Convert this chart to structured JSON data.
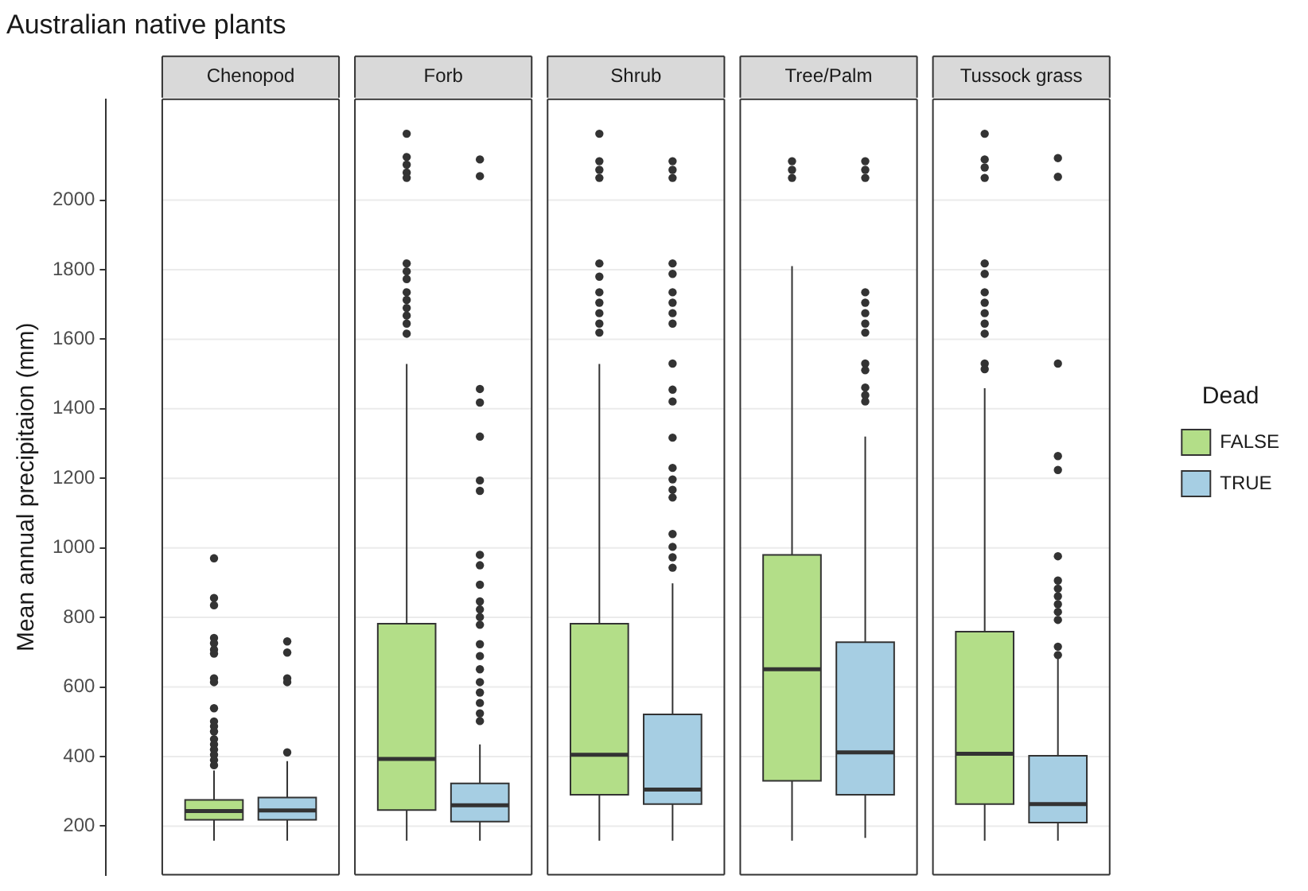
{
  "chart_data": {
    "type": "box",
    "title": "Australian native plants",
    "ylabel": "Mean annual precipitaion (mm)",
    "legend_title": "Dead",
    "legend": "right",
    "grid": true,
    "categories": [
      "Chenopod",
      "Forb",
      "Shrub",
      "Tree/Palm",
      "Tussock grass"
    ],
    "ylim": [
      60,
      2290
    ],
    "yticks": [
      200,
      400,
      600,
      800,
      1000,
      1200,
      1400,
      1600,
      1800,
      2000
    ],
    "series": [
      {
        "name": "FALSE",
        "color": "#b3de88",
        "boxes": [
          {
            "low": 158,
            "q1": 218,
            "median": 243,
            "q3": 275,
            "high": 360,
            "outliers": [
              970,
              856,
              835,
              741,
              726,
              707,
              696,
              625,
              614,
              539,
              501,
              487,
              472,
              450,
              435,
              420,
              405,
              390,
              375
            ]
          },
          {
            "low": 158,
            "q1": 246,
            "median": 393,
            "q3": 782,
            "high": 1529,
            "outliers": [
              2191,
              2124,
              2102,
              2079,
              2064,
              1818,
              1795,
              1773,
              1735,
              1713,
              1690,
              1668,
              1645,
              1616
            ]
          },
          {
            "low": 158,
            "q1": 290,
            "median": 405,
            "q3": 782,
            "high": 1529,
            "outliers": [
              2191,
              2112,
              2087,
              2064,
              1818,
              1780,
              1735,
              1705,
              1675,
              1645,
              1619
            ]
          },
          {
            "low": 158,
            "q1": 330,
            "median": 651,
            "q3": 980,
            "high": 1810,
            "outliers": [
              2112,
              2087,
              2064
            ]
          },
          {
            "low": 158,
            "q1": 263,
            "median": 408,
            "q3": 759,
            "high": 1459,
            "outliers": [
              2191,
              2117,
              2094,
              2064,
              1818,
              1788,
              1735,
              1705,
              1675,
              1645,
              1616,
              1530,
              1514
            ]
          }
        ]
      },
      {
        "name": "TRUE",
        "color": "#a6cee3",
        "boxes": [
          {
            "low": 158,
            "q1": 218,
            "median": 245,
            "q3": 282,
            "high": 387,
            "outliers": [
              731,
              699,
              625,
              614,
              412
            ]
          },
          {
            "low": 158,
            "q1": 213,
            "median": 260,
            "q3": 323,
            "high": 435,
            "outliers": [
              2117,
              2069,
              1457,
              1418,
              1320,
              1194,
              1164,
              980,
              950,
              894,
              846,
              823,
              801,
              779,
              723,
              689,
              651,
              614,
              584,
              554,
              524,
              502
            ]
          },
          {
            "low": 158,
            "q1": 263,
            "median": 305,
            "q3": 521,
            "high": 898,
            "outliers": [
              2112,
              2087,
              2064,
              1818,
              1788,
              1735,
              1705,
              1675,
              1645,
              1530,
              1455,
              1421,
              1317,
              1230,
              1197,
              1167,
              1145,
              1040,
              1003,
              973,
              943
            ]
          },
          {
            "low": 166,
            "q1": 290,
            "median": 412,
            "q3": 729,
            "high": 1320,
            "outliers": [
              2112,
              2087,
              2064,
              1735,
              1705,
              1675,
              1645,
              1619,
              1530,
              1511,
              1461,
              1439,
              1421
            ]
          },
          {
            "low": 158,
            "q1": 210,
            "median": 263,
            "q3": 402,
            "high": 701,
            "outliers": [
              2121,
              2067,
              1530,
              1264,
              1224,
              976,
              906,
              883,
              861,
              838,
              816,
              793,
              716,
              692
            ]
          }
        ]
      }
    ]
  }
}
